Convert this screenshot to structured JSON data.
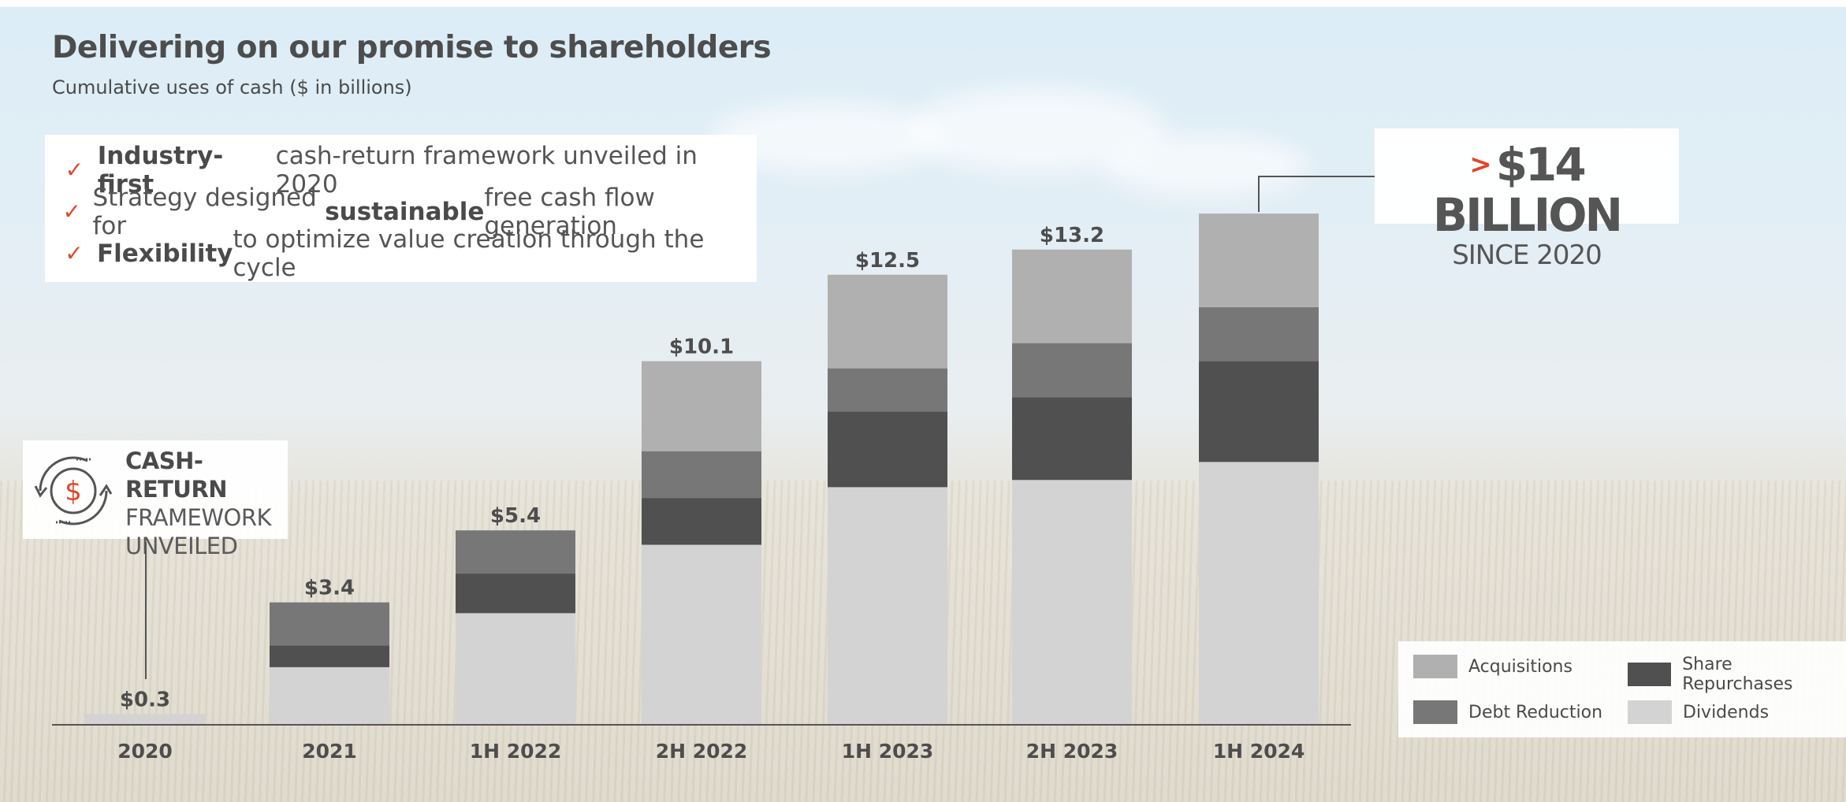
{
  "header": {
    "title": "Delivering on our promise to shareholders",
    "subtitle": "Cumulative uses of cash ($ in billions)"
  },
  "bullets": [
    {
      "icon": "check-icon",
      "bold": "Industry-first",
      "pre": "",
      "post": " cash-return framework unveiled in 2020"
    },
    {
      "icon": "check-icon",
      "bold": "sustainable",
      "pre": "Strategy designed for ",
      "post": " free cash flow generation"
    },
    {
      "icon": "check-icon",
      "bold": "Flexibility",
      "pre": "",
      "post": " to optimize value creation through the cycle"
    }
  ],
  "callout": {
    "icon": "cash-cycle-icon",
    "line1": "CASH-RETURN",
    "line2": "FRAMEWORK",
    "line3": "UNVEILED"
  },
  "highlight": {
    "prefix": ">",
    "amount": "$14 BILLION",
    "since": "SINCE 2020"
  },
  "colors": {
    "accent": "#e0472a",
    "acquisitions": "#b0b0b0",
    "debt_reduction": "#777777",
    "share_repurchases": "#505050",
    "dividends": "#d3d3d3"
  },
  "chart_data": {
    "type": "bar",
    "stacked": true,
    "title": "Delivering on our promise to shareholders",
    "subtitle": "Cumulative uses of cash ($ in billions)",
    "xlabel": "",
    "ylabel": "",
    "ylim": [
      0,
      14.2
    ],
    "grid": false,
    "legend": "bottom-right",
    "categories": [
      "2020",
      "2021",
      "1H 2022",
      "2H 2022",
      "1H 2023",
      "2H 2023",
      "1H 2024"
    ],
    "series": [
      {
        "name": "Dividends",
        "values": [
          0.3,
          1.6,
          3.1,
          5.0,
          6.6,
          6.8,
          7.3
        ]
      },
      {
        "name": "Share Repurchases",
        "values": [
          0,
          0.6,
          1.1,
          1.3,
          2.1,
          2.3,
          2.8
        ]
      },
      {
        "name": "Debt Reduction",
        "values": [
          0,
          1.2,
          1.2,
          1.3,
          1.2,
          1.5,
          1.5
        ]
      },
      {
        "name": "Acquisitions",
        "values": [
          0,
          0,
          0,
          2.5,
          2.6,
          2.6,
          2.6
        ]
      }
    ],
    "totals": [
      0.3,
      3.4,
      5.4,
      10.1,
      12.5,
      13.2,
      14.2
    ],
    "data_labels": [
      "$0.3",
      "$3.4",
      "$5.4",
      "$10.1",
      "$12.5",
      "$13.2",
      ""
    ],
    "legend_entries": [
      "Acquisitions",
      "Share Repurchases",
      "Debt Reduction",
      "Dividends"
    ]
  }
}
